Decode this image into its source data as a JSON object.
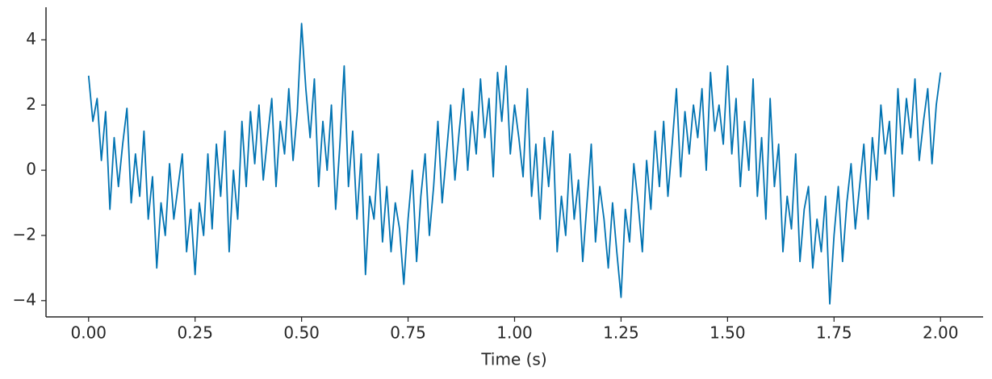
{
  "chart_data": {
    "type": "line",
    "xlabel": "Time (s)",
    "x": [
      0.0,
      0.01,
      0.02,
      0.03,
      0.04,
      0.05,
      0.06,
      0.07,
      0.08,
      0.09,
      0.1,
      0.11,
      0.12,
      0.13,
      0.14,
      0.15,
      0.16,
      0.17,
      0.18,
      0.19,
      0.2,
      0.21,
      0.22,
      0.23,
      0.24,
      0.25,
      0.26,
      0.27,
      0.28,
      0.29,
      0.3,
      0.31,
      0.32,
      0.33,
      0.34,
      0.35,
      0.36,
      0.37,
      0.38,
      0.39,
      0.4,
      0.41,
      0.42,
      0.43,
      0.44,
      0.45,
      0.46,
      0.47,
      0.48,
      0.49,
      0.5,
      0.51,
      0.52,
      0.53,
      0.54,
      0.55,
      0.56,
      0.57,
      0.58,
      0.59,
      0.6,
      0.61,
      0.62,
      0.63,
      0.64,
      0.65,
      0.66,
      0.67,
      0.68,
      0.69,
      0.7,
      0.71,
      0.72,
      0.73,
      0.74,
      0.75,
      0.76,
      0.77,
      0.78,
      0.79,
      0.8,
      0.81,
      0.82,
      0.83,
      0.84,
      0.85,
      0.86,
      0.87,
      0.88,
      0.89,
      0.9,
      0.91,
      0.92,
      0.93,
      0.94,
      0.95,
      0.96,
      0.97,
      0.98,
      0.99,
      1.0,
      1.01,
      1.02,
      1.03,
      1.04,
      1.05,
      1.06,
      1.07,
      1.08,
      1.09,
      1.1,
      1.11,
      1.12,
      1.13,
      1.14,
      1.15,
      1.16,
      1.17,
      1.18,
      1.19,
      1.2,
      1.21,
      1.22,
      1.23,
      1.24,
      1.25,
      1.26,
      1.27,
      1.28,
      1.29,
      1.3,
      1.31,
      1.32,
      1.33,
      1.34,
      1.35,
      1.36,
      1.37,
      1.38,
      1.39,
      1.4,
      1.41,
      1.42,
      1.43,
      1.44,
      1.45,
      1.46,
      1.47,
      1.48,
      1.49,
      1.5,
      1.51,
      1.52,
      1.53,
      1.54,
      1.55,
      1.56,
      1.57,
      1.58,
      1.59,
      1.6,
      1.61,
      1.62,
      1.63,
      1.64,
      1.65,
      1.66,
      1.67,
      1.68,
      1.69,
      1.7,
      1.71,
      1.72,
      1.73,
      1.74,
      1.75,
      1.76,
      1.77,
      1.78,
      1.79,
      1.8,
      1.81,
      1.82,
      1.83,
      1.84,
      1.85,
      1.86,
      1.87,
      1.88,
      1.89,
      1.9,
      1.91,
      1.92,
      1.93,
      1.94,
      1.95,
      1.96,
      1.97,
      1.98,
      1.99,
      2.0
    ],
    "series": [
      {
        "color": "#0173b2",
        "values": [
          2.9,
          1.5,
          2.2,
          0.3,
          1.8,
          -1.2,
          1.0,
          -0.5,
          0.8,
          1.9,
          -1.0,
          0.5,
          -0.8,
          1.2,
          -1.5,
          -0.2,
          -3.0,
          -1.0,
          -2.0,
          0.2,
          -1.5,
          -0.5,
          0.5,
          -2.5,
          -1.2,
          -3.2,
          -1.0,
          -2.0,
          0.5,
          -1.8,
          0.8,
          -0.8,
          1.2,
          -2.5,
          0.0,
          -1.5,
          1.5,
          -0.5,
          1.8,
          0.2,
          2.0,
          -0.3,
          1.0,
          2.2,
          -0.5,
          1.5,
          0.5,
          2.5,
          0.3,
          1.8,
          4.5,
          2.5,
          1.0,
          2.8,
          -0.5,
          1.5,
          0.0,
          2.0,
          -1.2,
          0.8,
          3.2,
          -0.5,
          1.2,
          -1.5,
          0.5,
          -3.2,
          -0.8,
          -1.5,
          0.5,
          -2.2,
          -0.5,
          -2.5,
          -1.0,
          -1.8,
          -3.5,
          -1.5,
          0.0,
          -2.8,
          -0.8,
          0.5,
          -2.0,
          -0.5,
          1.5,
          -1.0,
          0.5,
          2.0,
          -0.3,
          1.2,
          2.5,
          0.0,
          1.8,
          0.5,
          2.8,
          1.0,
          2.2,
          -0.2,
          3.0,
          1.5,
          3.2,
          0.5,
          2.0,
          1.0,
          -0.2,
          2.5,
          -0.8,
          0.8,
          -1.5,
          1.0,
          -0.5,
          1.2,
          -2.5,
          -0.8,
          -2.0,
          0.5,
          -1.5,
          -0.3,
          -2.8,
          -1.0,
          0.8,
          -2.2,
          -0.5,
          -1.5,
          -3.0,
          -1.0,
          -2.5,
          -3.9,
          -1.2,
          -2.2,
          0.2,
          -1.0,
          -2.5,
          0.3,
          -1.2,
          1.2,
          -0.5,
          1.5,
          -0.8,
          0.8,
          2.5,
          -0.2,
          1.8,
          0.5,
          2.0,
          1.0,
          2.5,
          0.0,
          3.0,
          1.2,
          2.0,
          0.8,
          3.2,
          0.5,
          2.2,
          -0.5,
          1.5,
          0.0,
          2.8,
          -0.8,
          1.0,
          -1.5,
          2.2,
          -0.5,
          0.8,
          -2.5,
          -0.8,
          -1.8,
          0.5,
          -2.8,
          -1.2,
          -0.5,
          -3.0,
          -1.5,
          -2.5,
          -0.8,
          -4.1,
          -2.0,
          -0.5,
          -2.8,
          -1.0,
          0.2,
          -1.8,
          -0.5,
          0.8,
          -1.5,
          1.0,
          -0.3,
          2.0,
          0.5,
          1.5,
          -0.8,
          2.5,
          0.5,
          2.2,
          1.0,
          2.8,
          0.3,
          1.5,
          2.5,
          0.2,
          2.0,
          3.0
        ]
      }
    ],
    "xlim": [
      -0.1,
      2.1
    ],
    "xticks": [
      {
        "value": 0,
        "label": "0.00"
      },
      {
        "value": 0.25,
        "label": "0.25"
      },
      {
        "value": 0.5,
        "label": "0.50"
      },
      {
        "value": 0.75,
        "label": "0.75"
      },
      {
        "value": 1,
        "label": "1.00"
      },
      {
        "value": 1.25,
        "label": "1.25"
      },
      {
        "value": 1.5,
        "label": "1.50"
      },
      {
        "value": 1.75,
        "label": "1.75"
      },
      {
        "value": 2,
        "label": "2.00"
      }
    ],
    "ylim": [
      -4.5,
      5
    ],
    "yticks": [
      {
        "value": -4,
        "label": "−4"
      },
      {
        "value": -2,
        "label": "−2"
      },
      0,
      2,
      4
    ]
  }
}
